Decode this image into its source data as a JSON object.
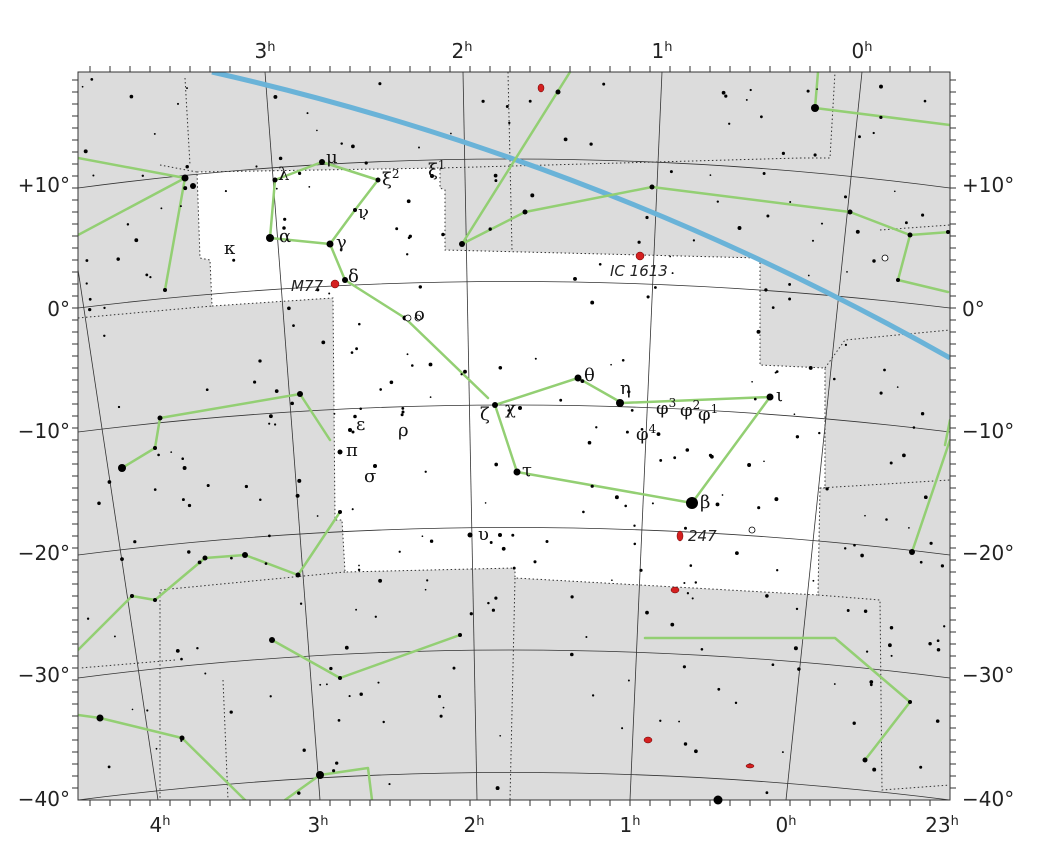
{
  "chart": {
    "ra_top": [
      {
        "h": "3",
        "s": "h"
      },
      {
        "h": "2",
        "s": "h"
      },
      {
        "h": "1",
        "s": "h"
      },
      {
        "h": "0",
        "s": "h"
      }
    ],
    "ra_bottom": [
      {
        "h": "4",
        "s": "h"
      },
      {
        "h": "3",
        "s": "h"
      },
      {
        "h": "2",
        "s": "h"
      },
      {
        "h": "1",
        "s": "h"
      },
      {
        "h": "0",
        "s": "h"
      },
      {
        "h": "23",
        "s": "h"
      }
    ],
    "dec_left": [
      "+10°",
      "0°",
      "−10°",
      "−20°",
      "−30°",
      "−40°"
    ],
    "dec_right": [
      "+10°",
      "0°",
      "−10°",
      "−20°",
      "−30°",
      "−40°"
    ],
    "star_labels": [
      {
        "name": "star-label-lambda",
        "text": "λ"
      },
      {
        "name": "star-label-mu",
        "text": "μ"
      },
      {
        "name": "star-label-xi2",
        "text": "ξ",
        "sup": "2"
      },
      {
        "name": "star-label-xi1",
        "text": "ξ",
        "sup": "1"
      },
      {
        "name": "star-label-nu",
        "text": "ν"
      },
      {
        "name": "star-label-kappa",
        "text": "κ"
      },
      {
        "name": "star-label-alpha",
        "text": "α"
      },
      {
        "name": "star-label-gamma",
        "text": "γ"
      },
      {
        "name": "star-label-delta",
        "text": "δ"
      },
      {
        "name": "star-label-omicron",
        "text": "ο"
      },
      {
        "name": "star-label-theta",
        "text": "θ"
      },
      {
        "name": "star-label-eta",
        "text": "η"
      },
      {
        "name": "star-label-iota",
        "text": "ι"
      },
      {
        "name": "star-label-phi3",
        "text": "φ",
        "sup": "3"
      },
      {
        "name": "star-label-phi2",
        "text": "φ",
        "sup": "2"
      },
      {
        "name": "star-label-phi1",
        "text": "φ",
        "sup": "1"
      },
      {
        "name": "star-label-phi4",
        "text": "φ",
        "sup": "4"
      },
      {
        "name": "star-label-zeta",
        "text": "ζ"
      },
      {
        "name": "star-label-chi",
        "text": "χ"
      },
      {
        "name": "star-label-epsilon",
        "text": "ε"
      },
      {
        "name": "star-label-rho",
        "text": "ρ"
      },
      {
        "name": "star-label-pi",
        "text": "π"
      },
      {
        "name": "star-label-sigma",
        "text": "σ"
      },
      {
        "name": "star-label-tau",
        "text": "τ"
      },
      {
        "name": "star-label-beta",
        "text": "β"
      },
      {
        "name": "star-label-upsilon",
        "text": "υ"
      }
    ],
    "objects": {
      "m77": "M77",
      "ic1613": "IC 1613",
      "ngc247": "247"
    },
    "colors": {
      "background": "#dcdcdc",
      "constellation_area": "#ffffff",
      "figure_lines": "#93cf73",
      "ecliptic": "#6ab3d8",
      "grid": "#333333",
      "galaxy": "#d42020"
    }
  }
}
